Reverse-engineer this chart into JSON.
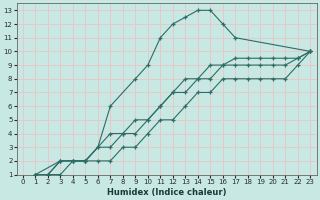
{
  "xlabel": "Humidex (Indice chaleur)",
  "ylabel": "",
  "xlim": [
    -0.5,
    23.5
  ],
  "ylim": [
    1,
    13.5
  ],
  "xticks": [
    0,
    1,
    2,
    3,
    4,
    5,
    6,
    7,
    8,
    9,
    10,
    11,
    12,
    13,
    14,
    15,
    16,
    17,
    18,
    19,
    20,
    21,
    22,
    23
  ],
  "yticks": [
    1,
    2,
    3,
    4,
    5,
    6,
    7,
    8,
    9,
    10,
    11,
    12,
    13
  ],
  "bg_color": "#c8e8e4",
  "grid_color": "#e8c8c8",
  "line_color": "#2a6e65",
  "lines": [
    {
      "x": [
        1,
        2,
        3,
        4,
        5,
        6,
        7,
        9,
        10,
        11,
        12,
        13,
        14,
        15,
        16,
        17,
        23
      ],
      "y": [
        1,
        1,
        2,
        2,
        2,
        3,
        6,
        8,
        9,
        11,
        12,
        12.5,
        13,
        13,
        12,
        11,
        10
      ]
    },
    {
      "x": [
        1,
        3,
        4,
        5,
        7,
        8,
        9,
        10,
        11,
        12,
        13,
        14,
        15,
        16,
        17,
        18,
        19,
        20,
        21,
        22,
        23
      ],
      "y": [
        1,
        2,
        2,
        2,
        4,
        4,
        5,
        5,
        6,
        7,
        8,
        8,
        9,
        9,
        9.5,
        9.5,
        9.5,
        9.5,
        9.5,
        9.5,
        10
      ]
    },
    {
      "x": [
        1,
        2,
        3,
        4,
        5,
        6,
        7,
        8,
        9,
        10,
        11,
        12,
        13,
        14,
        15,
        16,
        17,
        18,
        19,
        20,
        21,
        22,
        23
      ],
      "y": [
        1,
        1,
        2,
        2,
        2,
        3,
        3,
        4,
        4,
        5,
        6,
        7,
        7,
        8,
        8,
        9,
        9,
        9,
        9,
        9,
        9,
        9.5,
        10
      ]
    },
    {
      "x": [
        1,
        2,
        3,
        4,
        5,
        6,
        7,
        8,
        9,
        10,
        11,
        12,
        13,
        14,
        15,
        16,
        17,
        18,
        19,
        20,
        21,
        22,
        23
      ],
      "y": [
        1,
        1,
        1,
        2,
        2,
        2,
        2,
        3,
        3,
        4,
        5,
        5,
        6,
        7,
        7,
        8,
        8,
        8,
        8,
        8,
        8,
        9,
        10
      ]
    }
  ]
}
